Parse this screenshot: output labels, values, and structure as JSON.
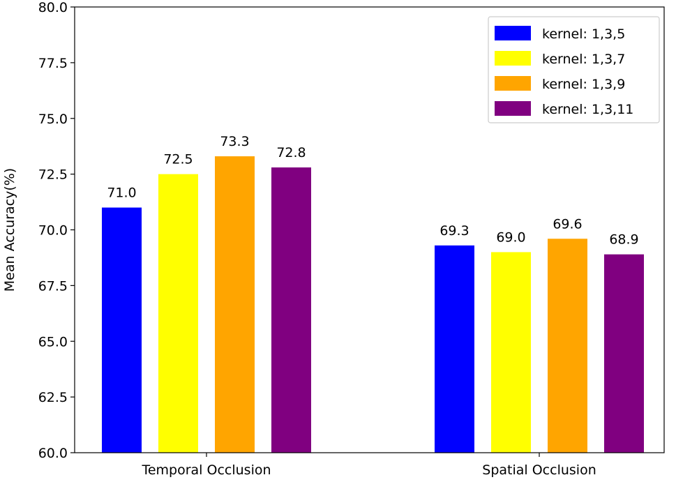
{
  "chart_data": {
    "type": "bar",
    "title": "",
    "xlabel": "",
    "ylabel": "Mean Accuracy(%)",
    "ylim": [
      60.0,
      80.0
    ],
    "yticks": [
      "60.0",
      "62.5",
      "65.0",
      "67.5",
      "70.0",
      "72.5",
      "75.0",
      "77.5",
      "80.0"
    ],
    "categories": [
      "Temporal Occlusion",
      "Spatial Occlusion"
    ],
    "series": [
      {
        "name": "kernel: 1,3,5",
        "color": "#0000ff",
        "values": [
          71.0,
          69.3
        ],
        "labels": [
          "71.0",
          "69.3"
        ]
      },
      {
        "name": "kernel: 1,3,7",
        "color": "#ffff00",
        "values": [
          72.5,
          69.0
        ],
        "labels": [
          "72.5",
          "69.0"
        ]
      },
      {
        "name": "kernel: 1,3,9",
        "color": "#ffa500",
        "values": [
          73.3,
          69.6
        ],
        "labels": [
          "73.3",
          "69.6"
        ]
      },
      {
        "name": "kernel: 1,3,11",
        "color": "#800080",
        "values": [
          72.8,
          68.9
        ],
        "labels": [
          "72.8",
          "68.9"
        ]
      }
    ],
    "legend": "top-right",
    "grid": false
  }
}
